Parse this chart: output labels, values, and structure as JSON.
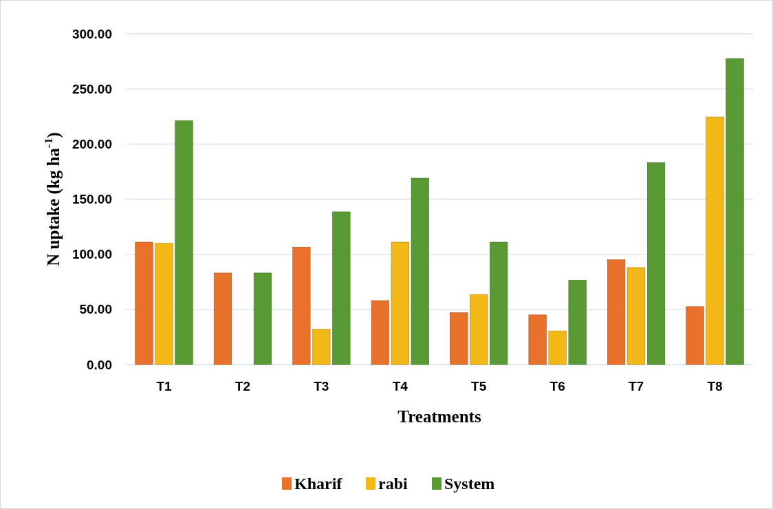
{
  "chart_data": {
    "type": "bar",
    "xlabel": "Treatments",
    "ylabel": "N uptake (kg ha$^{-1}$)",
    "categories": [
      "T1",
      "T2",
      "T3",
      "T4",
      "T5",
      "T6",
      "T7",
      "T8"
    ],
    "series": [
      {
        "name": "Kharif",
        "color": "#e8722c",
        "values": [
          111,
          83,
          106.5,
          58,
          47,
          45,
          95,
          52.5
        ]
      },
      {
        "name": "rabi",
        "color": "#f2b818",
        "values": [
          110,
          0,
          32,
          111,
          63.5,
          30.5,
          88,
          224.5
        ]
      },
      {
        "name": "System",
        "color": "#5a9a34",
        "values": [
          221,
          83,
          138.5,
          169,
          111,
          76.5,
          183,
          277.5
        ]
      }
    ],
    "ylim": [
      0,
      300
    ],
    "yticks": [
      {
        "value": 0,
        "label": "0.00"
      },
      {
        "value": 50,
        "label": "50.00"
      },
      {
        "value": 100,
        "label": "100.00"
      },
      {
        "value": 150,
        "label": "150.00"
      },
      {
        "value": 200,
        "label": "200.00"
      },
      {
        "value": 250,
        "label": "250.00"
      },
      {
        "value": 300,
        "label": "300.00"
      }
    ],
    "grid": "y",
    "legend": "bottom"
  }
}
